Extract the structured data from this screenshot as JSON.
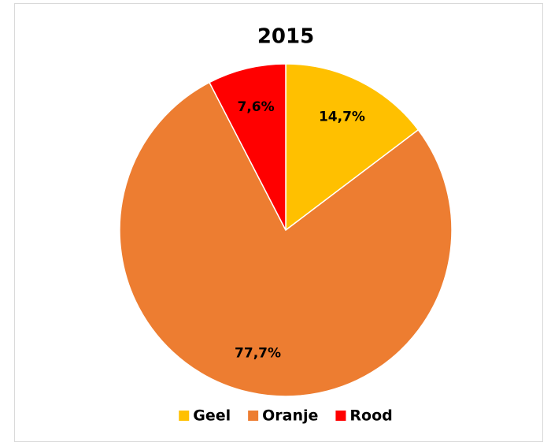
{
  "chart_data": {
    "type": "pie",
    "title": "2015",
    "labels": [
      "Geel",
      "Oranje",
      "Rood"
    ],
    "values": [
      14.7,
      77.7,
      7.6
    ],
    "value_labels": [
      "14,7%",
      "77,7%",
      "7,6%"
    ],
    "colors": [
      "#FFC000",
      "#ED7D31",
      "#FF0000"
    ],
    "legend": "bottom"
  }
}
